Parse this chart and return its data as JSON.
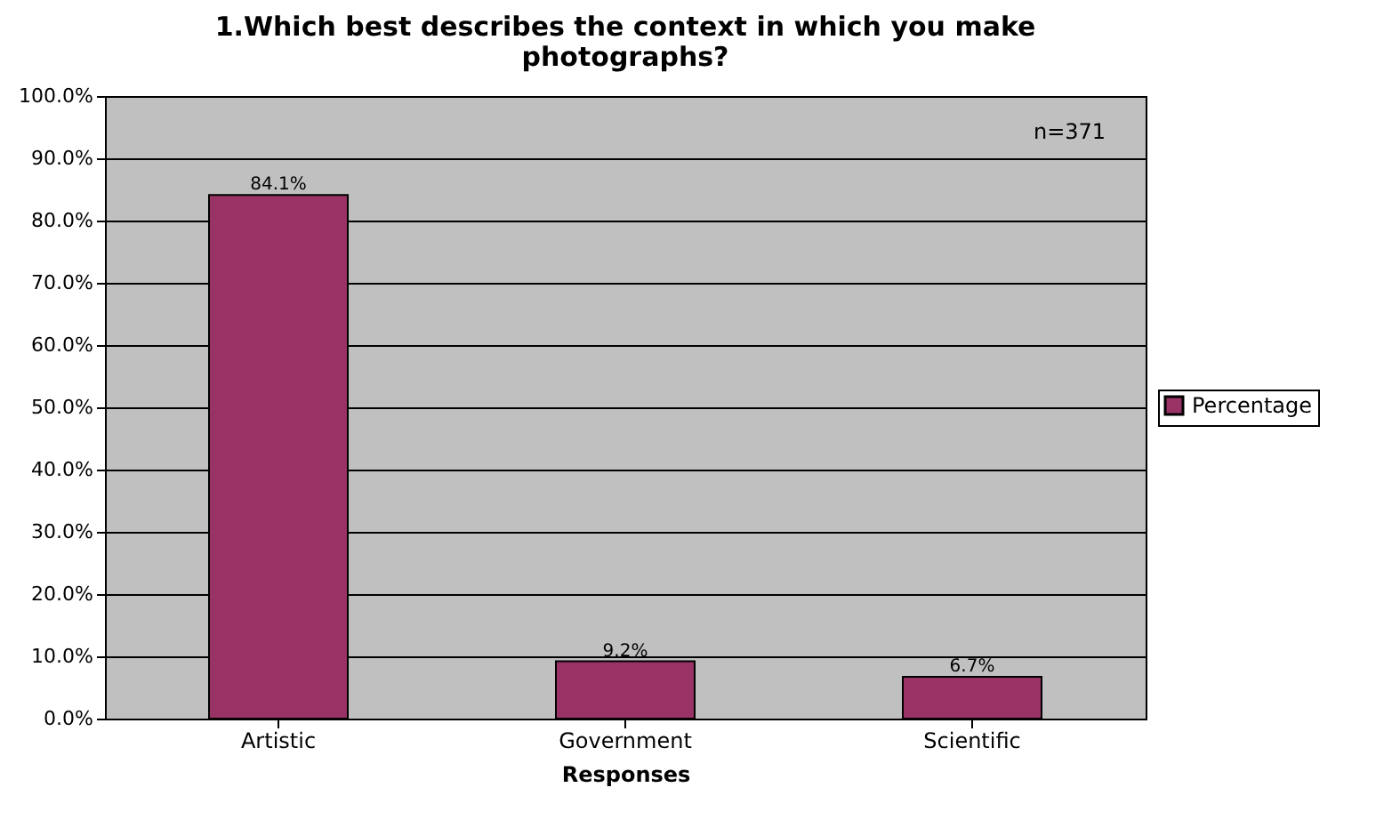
{
  "chart_data": {
    "type": "bar",
    "title": "1.Which best describes the context in which you make photographs?",
    "xlabel": "Responses",
    "categories": [
      "Artistic",
      "Government",
      "Scientific"
    ],
    "series": [
      {
        "name": "Percentage",
        "color": "#993366",
        "values": [
          84.1,
          9.2,
          6.7
        ],
        "value_labels": [
          "84.1%",
          "9.2%",
          "6.7%"
        ]
      }
    ],
    "ylim": [
      0,
      100
    ],
    "yticks": [
      {
        "value": 0,
        "label": "0.0%"
      },
      {
        "value": 10,
        "label": "10.0%"
      },
      {
        "value": 20,
        "label": "20.0%"
      },
      {
        "value": 30,
        "label": "30.0%"
      },
      {
        "value": 40,
        "label": "40.0%"
      },
      {
        "value": 50,
        "label": "50.0%"
      },
      {
        "value": 60,
        "label": "60.0%"
      },
      {
        "value": 70,
        "label": "70.0%"
      },
      {
        "value": 80,
        "label": "80.0%"
      },
      {
        "value": 90,
        "label": "90.0%"
      },
      {
        "value": 100,
        "label": "100.0%"
      }
    ],
    "annotations": [
      "n=371"
    ],
    "grid": "y",
    "legend": "right"
  }
}
